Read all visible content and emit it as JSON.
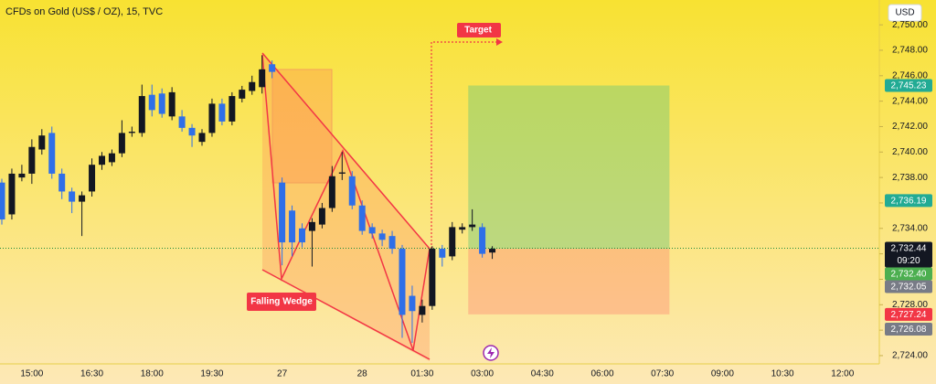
{
  "chart_data": {
    "type": "candlestick",
    "title": "CFDs on Gold (US$ / OZ), 15, TVC",
    "currency": "USD",
    "annotations": {
      "pattern": "Falling Wedge",
      "target": "Target"
    },
    "countdown": "09:20",
    "up_color": "#131722",
    "down_color": "#2f6fe8",
    "grid": false,
    "categories": [
      null,
      null,
      null,
      "15:00",
      null,
      null,
      null,
      null,
      null,
      "16:30",
      null,
      null,
      null,
      null,
      null,
      "18:00",
      null,
      null,
      null,
      null,
      null,
      "19:30",
      null,
      null,
      null,
      null,
      null,
      null,
      "27",
      null,
      null,
      null,
      null,
      null,
      null,
      null,
      "28",
      null,
      null,
      null,
      null,
      null,
      "01:30",
      null,
      null,
      null,
      null,
      null,
      "03:00",
      null,
      null,
      null,
      null,
      null,
      "04:30",
      null,
      null,
      null,
      null,
      null,
      "06:00",
      null,
      null,
      null,
      null,
      null,
      "07:30",
      null,
      null,
      null,
      null,
      null,
      "09:00",
      null,
      null,
      null,
      null,
      null,
      "10:30",
      null,
      null,
      null,
      null,
      null,
      "12:00",
      null,
      null,
      null
    ],
    "series": [
      {
        "open": [
          2737.6,
          2735.1,
          2738.0,
          2738.3,
          2740.2,
          2741.5,
          2738.3,
          2736.9,
          2736.1,
          2736.9,
          2739.0,
          2739.2,
          2739.9,
          2741.5,
          2741.5,
          2744.5,
          2744.6,
          2742.8,
          2742.8,
          2741.9,
          2740.8,
          2741.5,
          2743.8,
          2742.4,
          2744.2,
          2744.8,
          2745.1,
          2746.9,
          2737.6,
          2735.4,
          2734.0,
          2733.8,
          2734.3,
          2735.6,
          2738.3,
          2738.1,
          2735.8,
          2734.1,
          2733.6,
          2733.4,
          2732.4,
          2728.7,
          2727.2,
          2727.9,
          2732.4,
          2731.8,
          2733.9,
          2734.1,
          2734.1,
          2732.1,
          null,
          null,
          null,
          null,
          null,
          null,
          null,
          null,
          null,
          null,
          null,
          null,
          null,
          null,
          null,
          null,
          null,
          null,
          null,
          null,
          null,
          null,
          null,
          null,
          null,
          null,
          null,
          null,
          null,
          null,
          null,
          null,
          null,
          null,
          null,
          null,
          null,
          null
        ],
        "high": [
          2737.9,
          2738.7,
          2739.0,
          2741.0,
          2741.8,
          2742.0,
          2738.7,
          2737.2,
          2736.9,
          2739.5,
          2740.0,
          2740.2,
          2742.5,
          2742.0,
          2745.3,
          2745.3,
          2745.0,
          2745.1,
          2743.3,
          2742.2,
          2741.8,
          2744.2,
          2744.2,
          2744.7,
          2745.2,
          2746.0,
          2747.6,
          2747.2,
          2738.0,
          2735.8,
          2734.4,
          2734.8,
          2736.0,
          2738.9,
          2740.0,
          2738.5,
          2736.2,
          2734.4,
          2733.9,
          2733.8,
          2732.7,
          2729.5,
          2728.4,
          2732.6,
          2732.7,
          2734.5,
          2734.4,
          2735.5,
          2734.4,
          2732.6,
          null,
          null,
          null,
          null,
          null,
          null,
          null,
          null,
          null,
          null,
          null,
          null,
          null,
          null,
          null,
          null,
          null,
          null,
          null,
          null,
          null,
          null,
          null,
          null,
          null,
          null,
          null,
          null,
          null,
          null,
          null,
          null,
          null,
          null,
          null,
          null,
          null,
          null
        ],
        "low": [
          2734.3,
          2734.7,
          2737.7,
          2737.5,
          2739.8,
          2737.9,
          2736.3,
          2735.2,
          2733.4,
          2736.5,
          2738.6,
          2738.9,
          2739.6,
          2741.2,
          2741.2,
          2742.8,
          2742.7,
          2742.5,
          2741.6,
          2740.4,
          2740.5,
          2741.2,
          2742.1,
          2742.1,
          2743.9,
          2744.5,
          2744.6,
          2745.8,
          2731.1,
          2731.8,
          2732.5,
          2731.0,
          2734.0,
          2735.3,
          2737.8,
          2735.5,
          2733.5,
          2733.2,
          2732.6,
          2732.0,
          2725.4,
          2725.0,
          2726.6,
          2727.6,
          2731.0,
          2731.5,
          2733.6,
          2733.8,
          2731.7,
          2731.6,
          null,
          null,
          null,
          null,
          null,
          null,
          null,
          null,
          null,
          null,
          null,
          null,
          null,
          null,
          null,
          null,
          null,
          null,
          null,
          null,
          null,
          null,
          null,
          null,
          null,
          null,
          null,
          null,
          null,
          null,
          null,
          null,
          null,
          null,
          null,
          null,
          null,
          null
        ],
        "close": [
          2734.7,
          2738.3,
          2738.3,
          2740.4,
          2741.3,
          2738.3,
          2736.9,
          2736.1,
          2736.6,
          2739.0,
          2739.7,
          2739.9,
          2741.5,
          2741.6,
          2744.4,
          2743.3,
          2743.0,
          2744.7,
          2741.9,
          2741.3,
          2741.5,
          2743.8,
          2742.4,
          2744.4,
          2744.9,
          2745.5,
          2746.5,
          2746.3,
          2732.9,
          2732.9,
          2732.9,
          2734.5,
          2735.6,
          2738.1,
          2738.4,
          2735.8,
          2733.8,
          2733.6,
          2733.1,
          2732.4,
          2727.2,
          2727.5,
          2727.9,
          2732.4,
          2731.7,
          2734.1,
          2734.1,
          2734.3,
          2732.0,
          2732.4,
          null,
          null,
          null,
          null,
          null,
          null,
          null,
          null,
          null,
          null,
          null,
          null,
          null,
          null,
          null,
          null,
          null,
          null,
          null,
          null,
          null,
          null,
          null,
          null,
          null,
          null,
          null,
          null,
          null,
          null,
          null,
          null,
          null,
          null,
          null,
          null,
          null,
          null
        ]
      }
    ],
    "ylim": [
      2723.35,
      2751.95
    ],
    "yticks": [
      {
        "value": 2724,
        "label": "2,724.00"
      },
      {
        "value": 2726,
        "label": "2,726.00"
      },
      {
        "value": 2728,
        "label": "2,728.00"
      },
      {
        "value": 2730,
        "label": "2,730.00"
      },
      {
        "value": 2732,
        "label": "2,732.00"
      },
      {
        "value": 2734,
        "label": "2,734.00"
      },
      {
        "value": 2736,
        "label": "2,736.00"
      },
      {
        "value": 2738,
        "label": "2,738.00"
      },
      {
        "value": 2740,
        "label": "2,740.00"
      },
      {
        "value": 2742,
        "label": "2,742.00"
      },
      {
        "value": 2744,
        "label": "2,744.00"
      },
      {
        "value": 2746,
        "label": "2,746.00"
      },
      {
        "value": 2748,
        "label": "2,748.00"
      },
      {
        "value": 2750,
        "label": "2,750.00"
      }
    ],
    "price_markers": [
      {
        "value": 2745.23,
        "label": "2,745.23",
        "color": "#22ab94"
      },
      {
        "value": 2736.19,
        "label": "2,736.19",
        "color": "#22ab94"
      },
      {
        "value": 2732.44,
        "label": "2,732.44",
        "color": "#131722"
      },
      {
        "value": 2732.4,
        "label": "2,732.40",
        "color": "#4caf50"
      },
      {
        "value": 2732.05,
        "label": "2,732.05",
        "color": "#787b86"
      },
      {
        "value": 2727.24,
        "label": "2,727.24",
        "color": "#f23645"
      },
      {
        "value": 2726.08,
        "label": "2,726.08",
        "color": "#787b86"
      }
    ]
  }
}
